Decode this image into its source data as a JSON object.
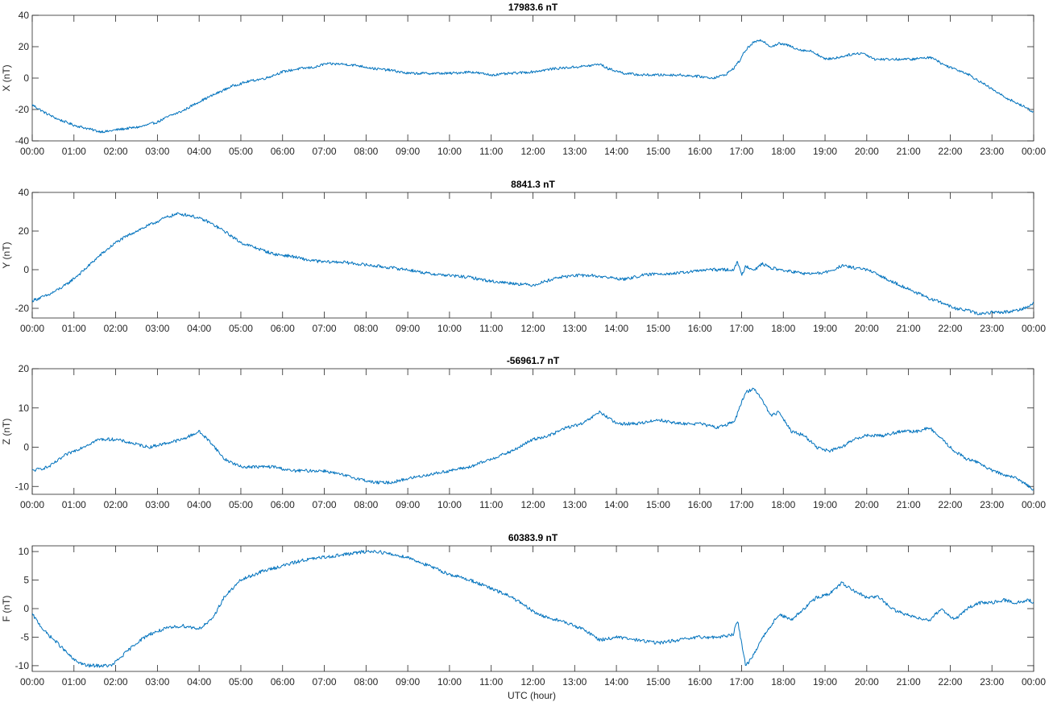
{
  "figure": {
    "xlabel": "UTC (hour)"
  },
  "chart_data": [
    {
      "type": "line",
      "title": "17983.6 nT",
      "ylabel": "X (nT)",
      "xlabel": "",
      "xlim": [
        0,
        24
      ],
      "ylim": [
        -40,
        40
      ],
      "yticks": [
        -40,
        -20,
        0,
        20,
        40
      ],
      "xtick_labels": [
        "00:00",
        "01:00",
        "02:00",
        "03:00",
        "04:00",
        "05:00",
        "06:00",
        "07:00",
        "08:00",
        "09:00",
        "10:00",
        "11:00",
        "12:00",
        "13:00",
        "14:00",
        "15:00",
        "16:00",
        "17:00",
        "18:00",
        "19:00",
        "20:00",
        "21:00",
        "22:00",
        "23:00",
        "00:00"
      ],
      "grid": false,
      "color": "#0072BD",
      "noise": 0.8,
      "series": [
        {
          "x": [
            0,
            0.3,
            0.6,
            1.0,
            1.3,
            1.6,
            1.8,
            2.0,
            2.3,
            2.6,
            3.0,
            3.3,
            3.6,
            4.0,
            4.4,
            4.8,
            5.2,
            5.6,
            6.0,
            6.4,
            6.8,
            7.0,
            7.4,
            7.8,
            8.2,
            8.6,
            9.0,
            9.5,
            10.0,
            10.5,
            11.0,
            11.5,
            12.0,
            12.5,
            13.0,
            13.4,
            13.6,
            13.8,
            14.2,
            14.6,
            15.0,
            15.5,
            16.0,
            16.3,
            16.6,
            16.8,
            16.95,
            17.1,
            17.3,
            17.5,
            17.7,
            17.9,
            18.1,
            18.4,
            18.7,
            19.0,
            19.3,
            19.6,
            19.9,
            20.2,
            20.5,
            20.8,
            21.1,
            21.4,
            21.6,
            21.8,
            22.1,
            22.4,
            22.7,
            23.0,
            23.3,
            23.6,
            23.9,
            24.0
          ],
          "y": [
            -17,
            -22,
            -26,
            -30,
            -32,
            -34,
            -34,
            -33,
            -32,
            -31,
            -28,
            -24,
            -21,
            -15,
            -10,
            -5,
            -2,
            0,
            4,
            6,
            7,
            9,
            9,
            8,
            6,
            5,
            3,
            3,
            3,
            4,
            2,
            3,
            4,
            6,
            7,
            8,
            9,
            6,
            3,
            2,
            2,
            2,
            1,
            0,
            2,
            6,
            11,
            18,
            23,
            24,
            20,
            22,
            21,
            18,
            17,
            12,
            13,
            15,
            16,
            12,
            12,
            12,
            12,
            13,
            13,
            9,
            6,
            3,
            -2,
            -7,
            -12,
            -16,
            -20,
            -22
          ]
        }
      ]
    },
    {
      "type": "line",
      "title": "8841.3 nT",
      "ylabel": "Y (nT)",
      "xlabel": "",
      "xlim": [
        0,
        24
      ],
      "ylim": [
        -25,
        40
      ],
      "yticks": [
        -20,
        0,
        20,
        40
      ],
      "xtick_labels": [
        "00:00",
        "01:00",
        "02:00",
        "03:00",
        "04:00",
        "05:00",
        "06:00",
        "07:00",
        "08:00",
        "09:00",
        "10:00",
        "11:00",
        "12:00",
        "13:00",
        "14:00",
        "15:00",
        "16:00",
        "17:00",
        "18:00",
        "19:00",
        "20:00",
        "21:00",
        "22:00",
        "23:00",
        "00:00"
      ],
      "grid": false,
      "color": "#0072BD",
      "noise": 0.8,
      "series": [
        {
          "x": [
            0,
            0.4,
            0.8,
            1.2,
            1.6,
            2.0,
            2.4,
            2.8,
            3.2,
            3.5,
            3.8,
            4.2,
            4.6,
            5.0,
            5.4,
            5.8,
            6.2,
            6.6,
            7.0,
            7.4,
            7.8,
            8.2,
            8.6,
            9.0,
            9.5,
            10.0,
            10.5,
            11.0,
            11.5,
            12.0,
            12.3,
            12.6,
            13.0,
            13.4,
            13.8,
            14.2,
            14.6,
            15.0,
            15.4,
            15.8,
            16.2,
            16.6,
            16.8,
            16.9,
            17.0,
            17.1,
            17.3,
            17.5,
            17.7,
            17.9,
            18.2,
            18.5,
            18.8,
            19.1,
            19.4,
            19.7,
            20.0,
            20.3,
            20.6,
            20.9,
            21.2,
            21.5,
            21.8,
            22.1,
            22.4,
            22.7,
            23.0,
            23.3,
            23.6,
            23.9,
            24.0
          ],
          "y": [
            -16,
            -13,
            -8,
            -1,
            7,
            14,
            19,
            23,
            27,
            29,
            28,
            25,
            20,
            14,
            11,
            8,
            7,
            5,
            4,
            4,
            3,
            2,
            1,
            0,
            -2,
            -3,
            -4,
            -6,
            -7,
            -8,
            -6,
            -4,
            -3,
            -3,
            -4,
            -5,
            -3,
            -2,
            -2,
            -1,
            0,
            0,
            0,
            4,
            -3,
            2,
            0,
            3,
            1,
            0,
            -1,
            -2,
            -2,
            -1,
            2,
            1,
            0,
            -3,
            -6,
            -9,
            -12,
            -15,
            -17,
            -20,
            -21,
            -23,
            -22,
            -22,
            -21,
            -19,
            -17
          ]
        }
      ]
    },
    {
      "type": "line",
      "title": "-56961.7 nT",
      "ylabel": "Z (nT)",
      "xlabel": "",
      "xlim": [
        0,
        24
      ],
      "ylim": [
        -12,
        20
      ],
      "yticks": [
        -10,
        0,
        10,
        20
      ],
      "xtick_labels": [
        "00:00",
        "01:00",
        "02:00",
        "03:00",
        "04:00",
        "05:00",
        "06:00",
        "07:00",
        "08:00",
        "09:00",
        "10:00",
        "11:00",
        "12:00",
        "13:00",
        "14:00",
        "15:00",
        "16:00",
        "17:00",
        "18:00",
        "19:00",
        "20:00",
        "21:00",
        "22:00",
        "23:00",
        "00:00"
      ],
      "grid": false,
      "color": "#0072BD",
      "noise": 0.4,
      "series": [
        {
          "x": [
            0,
            0.4,
            0.8,
            1.2,
            1.6,
            2.0,
            2.4,
            2.8,
            3.2,
            3.6,
            4.0,
            4.3,
            4.6,
            5.0,
            5.4,
            5.8,
            6.2,
            6.6,
            7.0,
            7.4,
            7.8,
            8.2,
            8.6,
            9.0,
            9.5,
            10.0,
            10.5,
            11.0,
            11.5,
            12.0,
            12.4,
            12.8,
            13.2,
            13.6,
            14.0,
            14.5,
            15.0,
            15.5,
            16.0,
            16.4,
            16.7,
            16.85,
            16.95,
            17.1,
            17.3,
            17.5,
            17.7,
            17.9,
            18.2,
            18.5,
            18.8,
            19.1,
            19.4,
            19.7,
            20.0,
            20.4,
            20.8,
            21.2,
            21.5,
            21.8,
            22.1,
            22.4,
            22.7,
            23.0,
            23.3,
            23.6,
            23.9,
            24.0
          ],
          "y": [
            -6,
            -5,
            -2,
            0,
            2,
            2,
            1,
            0,
            1,
            2,
            4,
            1,
            -3,
            -5,
            -5,
            -5,
            -6,
            -6,
            -6,
            -7,
            -8,
            -9,
            -9,
            -8,
            -7,
            -6,
            -5,
            -3,
            -1,
            2,
            3,
            5,
            6,
            9,
            6,
            6,
            7,
            6,
            6,
            5,
            6,
            7,
            10,
            14,
            15,
            12,
            8,
            9,
            4,
            3,
            0,
            -1,
            0,
            2,
            3,
            3,
            4,
            4,
            5,
            2,
            -1,
            -3,
            -4,
            -6,
            -7,
            -8,
            -10,
            -11
          ]
        }
      ]
    },
    {
      "type": "line",
      "title": "60383.9 nT",
      "ylabel": "F (nT)",
      "xlabel": "UTC (hour)",
      "xlim": [
        0,
        24
      ],
      "ylim": [
        -11,
        11
      ],
      "yticks": [
        -10,
        -5,
        0,
        5,
        10
      ],
      "xtick_labels": [
        "00:00",
        "01:00",
        "02:00",
        "03:00",
        "04:00",
        "05:00",
        "06:00",
        "07:00",
        "08:00",
        "09:00",
        "10:00",
        "11:00",
        "12:00",
        "13:00",
        "14:00",
        "15:00",
        "16:00",
        "17:00",
        "18:00",
        "19:00",
        "20:00",
        "21:00",
        "22:00",
        "23:00",
        "00:00"
      ],
      "grid": false,
      "color": "#0072BD",
      "noise": 0.3,
      "series": [
        {
          "x": [
            0,
            0.3,
            0.6,
            1.0,
            1.3,
            1.6,
            1.9,
            2.2,
            2.5,
            2.8,
            3.2,
            3.6,
            4.0,
            4.3,
            4.6,
            5.0,
            5.5,
            6.0,
            6.5,
            7.0,
            7.5,
            8.0,
            8.3,
            8.6,
            9.0,
            9.5,
            10.0,
            10.5,
            11.0,
            11.5,
            12.0,
            12.3,
            12.6,
            13.0,
            13.3,
            13.6,
            14.0,
            14.5,
            15.0,
            15.5,
            16.0,
            16.5,
            16.8,
            16.9,
            17.0,
            17.1,
            17.3,
            17.5,
            17.7,
            17.9,
            18.2,
            18.5,
            18.8,
            19.1,
            19.4,
            19.7,
            20.0,
            20.3,
            20.6,
            20.9,
            21.2,
            21.5,
            21.8,
            22.1,
            22.4,
            22.7,
            23.0,
            23.3,
            23.6,
            23.9,
            24.0
          ],
          "y": [
            -1,
            -4,
            -6,
            -9,
            -10,
            -10,
            -10,
            -8,
            -6,
            -4.5,
            -3.5,
            -3,
            -3.5,
            -2,
            2,
            5,
            6.5,
            7.5,
            8.5,
            9,
            9.5,
            10,
            10,
            9.5,
            9,
            7.5,
            6,
            5,
            3.5,
            2,
            -0.5,
            -1.5,
            -2,
            -3,
            -4,
            -5.5,
            -5,
            -5.5,
            -6,
            -5.5,
            -5,
            -5,
            -4.5,
            -2,
            -6,
            -10,
            -8,
            -5,
            -3,
            -1,
            -2,
            0,
            2,
            2.5,
            4.5,
            3,
            2,
            2,
            0,
            -1,
            -1.5,
            -2,
            0,
            -2,
            0,
            1,
            1,
            1.5,
            1,
            1.5,
            1
          ]
        }
      ]
    }
  ]
}
